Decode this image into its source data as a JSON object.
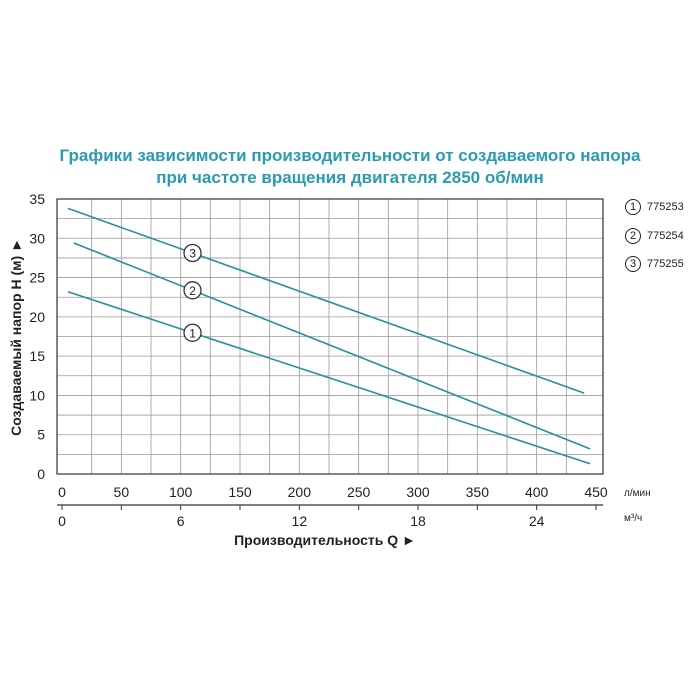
{
  "chart_data": {
    "type": "line",
    "title_line1": "Графики зависимости производительности от создаваемого напора",
    "title_line2": "при частоте вращения двигателя 2850 об/мин",
    "ylabel": "Создаваемый напор Н (м) ►",
    "xlabel": "Производительность Q ►",
    "x_unit_primary": "л/мин",
    "x_unit_secondary": "м³/ч",
    "xlim": [
      0,
      450
    ],
    "ylim": [
      0,
      35
    ],
    "y_ticks": [
      0,
      5,
      10,
      15,
      20,
      25,
      30,
      35
    ],
    "x_ticks_primary": [
      0,
      50,
      100,
      150,
      200,
      250,
      300,
      350,
      400,
      450
    ],
    "x_ticks_secondary": [
      {
        "label": "0",
        "value_m3h": 0
      },
      {
        "label": "6",
        "value_m3h": 6
      },
      {
        "label": "12",
        "value_m3h": 12
      },
      {
        "label": "18",
        "value_m3h": 18
      },
      {
        "label": "24",
        "value_m3h": 24
      }
    ],
    "grid": true,
    "legend_position": "right",
    "line_color": "#2a8e9e",
    "series": [
      {
        "name": "775253",
        "marker": "1",
        "points": [
          [
            5,
            23.2
          ],
          [
            445,
            1.3
          ]
        ],
        "label_x": 110
      },
      {
        "name": "775254",
        "marker": "2",
        "points": [
          [
            10,
            29.4
          ],
          [
            445,
            3.2
          ]
        ],
        "label_x": 110
      },
      {
        "name": "775255",
        "marker": "3",
        "points": [
          [
            5,
            33.8
          ],
          [
            440,
            10.3
          ]
        ],
        "label_x": 110
      }
    ]
  }
}
